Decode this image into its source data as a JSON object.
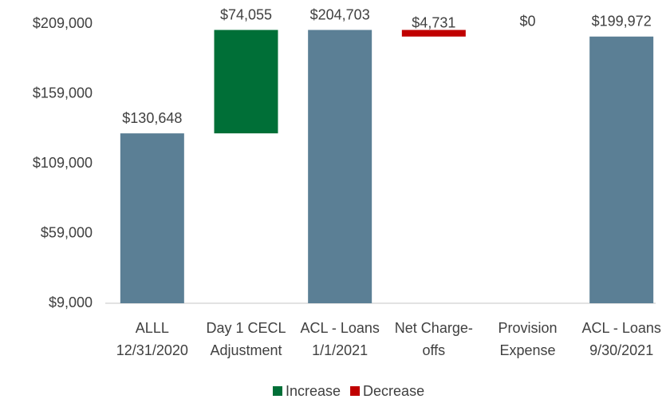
{
  "chart_data": {
    "type": "waterfall",
    "categories": [
      [
        "ALLL",
        "12/31/2020"
      ],
      [
        "Day 1 CECL",
        "Adjustment"
      ],
      [
        "ACL - Loans",
        "1/1/2021"
      ],
      [
        "Net Charge-",
        "offs"
      ],
      [
        "Provision",
        "Expense"
      ],
      [
        "ACL - Loans",
        "9/30/2021"
      ]
    ],
    "values": [
      130648,
      74055,
      204703,
      4731,
      0,
      199972
    ],
    "value_labels": [
      "$130,648",
      "$74,055",
      "$204,703",
      "$4,731",
      "$0",
      "$199,972"
    ],
    "kinds": [
      "total",
      "increase",
      "total",
      "decrease",
      "increase",
      "total"
    ],
    "total_color": "#5b7f95",
    "legend": [
      {
        "name": "Increase",
        "kind": "increase",
        "color": "#006f37"
      },
      {
        "name": "Decrease",
        "kind": "decrease",
        "color": "#c00000"
      }
    ],
    "legend_position": "bottom",
    "ylim": [
      9000,
      209000
    ],
    "yticks": [
      {
        "value": 9000,
        "label": "$9,000"
      },
      {
        "value": 59000,
        "label": "$59,000"
      },
      {
        "value": 109000,
        "label": "$109,000"
      },
      {
        "value": 159000,
        "label": "$159,000"
      },
      {
        "value": 209000,
        "label": "$209,000"
      }
    ],
    "grid": false
  }
}
